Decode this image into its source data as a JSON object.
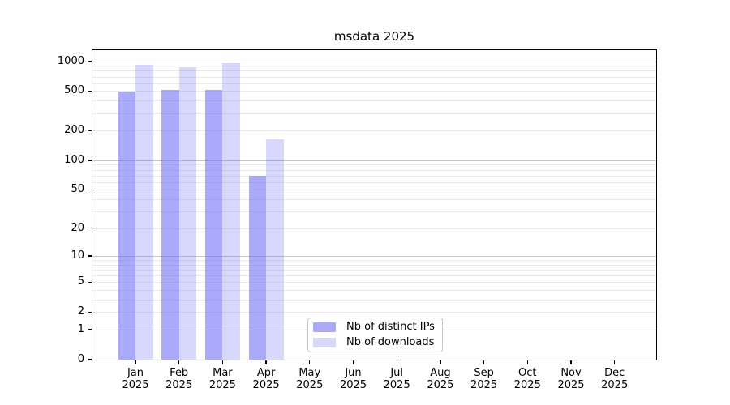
{
  "title": "msdata 2025",
  "colors": {
    "bar_distinct_ips": "rgba(100,100,245,0.55)",
    "bar_downloads": "rgba(100,100,245,0.25)",
    "grid_major": "#c6c6c6",
    "grid_minor": "#e9e9e9",
    "spine": "#000000",
    "legend_border": "#c9c9c9",
    "background": "#ffffff",
    "text": "#000000"
  },
  "legend": {
    "items": [
      {
        "label": "Nb of distinct IPs"
      },
      {
        "label": "Nb of downloads"
      }
    ]
  },
  "chart_data": {
    "type": "bar",
    "title": "msdata 2025",
    "categories": [
      "Jan 2025",
      "Feb 2025",
      "Mar 2025",
      "Apr 2025",
      "May 2025",
      "Jun 2025",
      "Jul 2025",
      "Aug 2025",
      "Sep 2025",
      "Oct 2025",
      "Nov 2025",
      "Dec 2025"
    ],
    "series": [
      {
        "name": "Nb of distinct IPs",
        "color": "rgba(100,100,245,0.55)",
        "values": [
          494,
          510,
          517,
          69,
          0,
          0,
          0,
          0,
          0,
          0,
          0,
          0
        ]
      },
      {
        "name": "Nb of downloads",
        "color": "rgba(100,100,245,0.25)",
        "values": [
          915,
          870,
          955,
          163,
          0,
          0,
          0,
          0,
          0,
          0,
          0,
          0
        ]
      }
    ],
    "xlabel": "",
    "ylabel": "",
    "y_ticks": [
      0,
      1,
      2,
      5,
      10,
      20,
      50,
      100,
      200,
      500,
      1000
    ],
    "y_scale": "log10(1+y)",
    "ylim": [
      0,
      1320
    ],
    "grid": "horizontal major and minor",
    "legend_position": "inside lower-center-left"
  }
}
